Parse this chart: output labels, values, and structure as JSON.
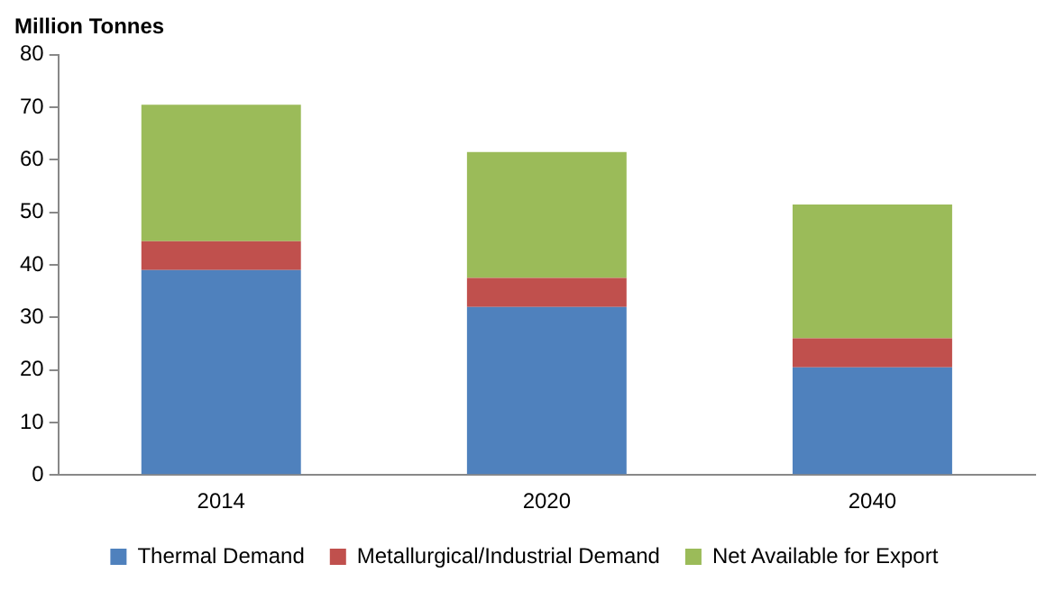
{
  "chart_data": {
    "type": "bar",
    "stacked": true,
    "ylabel": "Million Tonnes",
    "categories": [
      "2014",
      "2020",
      "2040"
    ],
    "series": [
      {
        "name": "Thermal Demand",
        "color": "#4f81bd",
        "values": [
          39,
          32,
          20.5
        ]
      },
      {
        "name": "Metallurgical/Industrial Demand",
        "color": "#c0504d",
        "values": [
          5.5,
          5.5,
          5.5
        ]
      },
      {
        "name": "Net Available for Export",
        "color": "#9bbb59",
        "values": [
          26,
          24,
          25.5
        ]
      }
    ],
    "ylim": [
      0,
      80
    ],
    "yticks": [
      0,
      10,
      20,
      30,
      40,
      50,
      60,
      70,
      80
    ],
    "grid": false,
    "legend": "bottom"
  }
}
